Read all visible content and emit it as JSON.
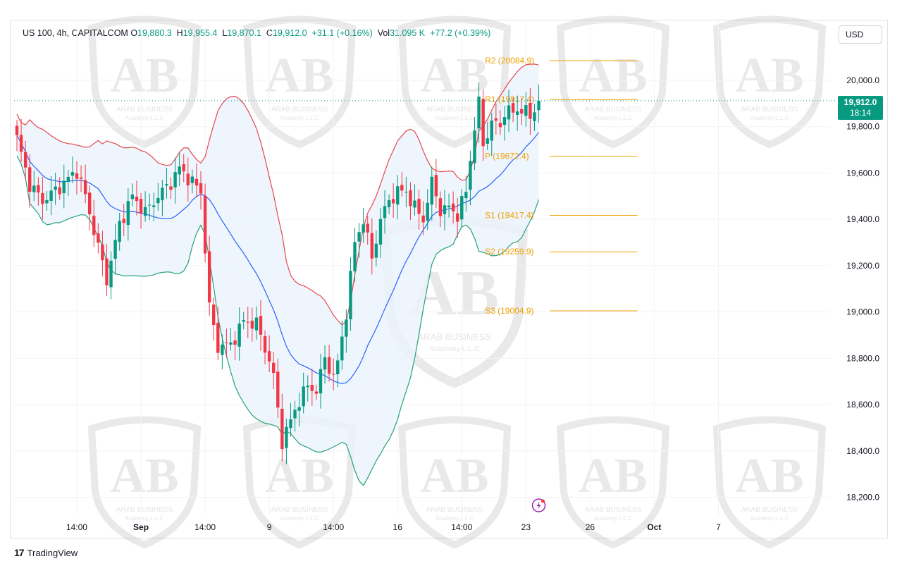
{
  "header": {
    "symbol": "US 100, 4h, CAPITALCOM",
    "open_label": "O",
    "open": "19,880.3",
    "high_label": "H",
    "high": "19,955.4",
    "low_label": "L",
    "low": "19,870.1",
    "close_label": "C",
    "close": "19,912.0",
    "change": "+31.1 (+0.16%)",
    "vol_label": "Vol",
    "vol": "31.095 K",
    "vol_change": "+77.2 (+0.39%)"
  },
  "currency": "USD",
  "last_price": "19,912.0",
  "countdown": "18:14",
  "watermark": {
    "line1": "ARAB BUSINESS",
    "line2": "Academy L.L.C",
    "mark": "AB"
  },
  "footer": {
    "brand": "TradingView",
    "logo_glyph": "17"
  },
  "colors": {
    "up": "#089981",
    "down": "#f23645",
    "upper_band": "#e5484d",
    "lower_band": "#26a17b",
    "basis": "#2962ff",
    "band_fill": "#eaf3fb",
    "pivot": "#f0a000"
  },
  "chart_data": {
    "type": "candlestick",
    "title": "US 100, 4h, CAPITALCOM",
    "ylim": [
      18130,
      20230
    ],
    "y_ticks": [
      "18,200.0",
      "18,400.0",
      "18,600.0",
      "18,800.0",
      "19,000.0",
      "19,200.0",
      "19,400.0",
      "19,600.0",
      "19,800.0",
      "20,000.0"
    ],
    "y_tick_values": [
      18200,
      18400,
      18600,
      18800,
      19000,
      19200,
      19400,
      19600,
      19800,
      20000
    ],
    "x_tick_labels": [
      "14:00",
      "Sep",
      "14:00",
      "9",
      "14:00",
      "16",
      "14:00",
      "23",
      "26",
      "Oct",
      "7"
    ],
    "x_tick_bar_index": [
      14,
      29,
      44,
      59,
      74,
      89,
      104,
      119,
      134,
      149,
      164
    ],
    "bar_count": 123,
    "forecast_bars": 45,
    "pivot_levels": [
      {
        "label": "R2",
        "value": 20084.9,
        "text": "R2 (20084.9)"
      },
      {
        "label": "R1",
        "value": 19917.4,
        "text": "R1 (19917.4)"
      },
      {
        "label": "P",
        "value": 19672.4,
        "text": "P (19672.4)"
      },
      {
        "label": "S1",
        "value": 19417.4,
        "text": "S1 (19417.4)"
      },
      {
        "label": "S2",
        "value": 19259.9,
        "text": "S2 (19259.9)"
      },
      {
        "label": "S3",
        "value": 19004.9,
        "text": "S3 (19004.9)"
      }
    ],
    "pivot_start_bar": 116,
    "close_anchors": [
      [
        0,
        19750
      ],
      [
        3,
        19550
      ],
      [
        6,
        19480
      ],
      [
        10,
        19540
      ],
      [
        14,
        19610
      ],
      [
        16,
        19500
      ],
      [
        19,
        19280
      ],
      [
        21,
        19140
      ],
      [
        24,
        19380
      ],
      [
        27,
        19500
      ],
      [
        30,
        19430
      ],
      [
        33,
        19500
      ],
      [
        36,
        19560
      ],
      [
        38,
        19620
      ],
      [
        40,
        19580
      ],
      [
        43,
        19520
      ],
      [
        45,
        19020
      ],
      [
        47,
        18850
      ],
      [
        50,
        18860
      ],
      [
        53,
        18960
      ],
      [
        56,
        18950
      ],
      [
        59,
        18790
      ],
      [
        60,
        18720
      ],
      [
        62,
        18440
      ],
      [
        64,
        18530
      ],
      [
        66,
        18620
      ],
      [
        68,
        18680
      ],
      [
        70,
        18660
      ],
      [
        72,
        18800
      ],
      [
        74,
        18720
      ],
      [
        75,
        18780
      ],
      [
        77,
        19000
      ],
      [
        79,
        19300
      ],
      [
        81,
        19400
      ],
      [
        83,
        19230
      ],
      [
        85,
        19400
      ],
      [
        87,
        19480
      ],
      [
        89,
        19520
      ],
      [
        91,
        19520
      ],
      [
        93,
        19450
      ],
      [
        95,
        19400
      ],
      [
        97,
        19560
      ],
      [
        99,
        19440
      ],
      [
        101,
        19450
      ],
      [
        103,
        19420
      ],
      [
        105,
        19520
      ],
      [
        107,
        19800
      ],
      [
        108,
        19900
      ],
      [
        109,
        19720
      ],
      [
        111,
        19820
      ],
      [
        113,
        19800
      ],
      [
        114,
        19870
      ],
      [
        116,
        19860
      ],
      [
        118,
        19880
      ],
      [
        120,
        19840
      ],
      [
        122,
        19912
      ]
    ],
    "bollinger": {
      "upper_color": "#e5484d",
      "lower_color": "#26a17b",
      "basis_color": "#2962ff"
    }
  }
}
